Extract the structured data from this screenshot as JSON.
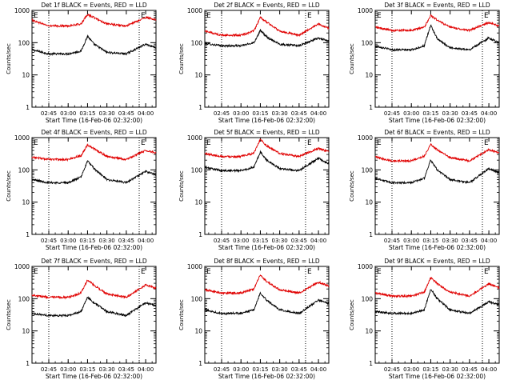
{
  "figure": {
    "start_time_label": "Start Time (16-Feb-06 02:32:00)",
    "ylabel": "Counts/sec",
    "x_ticks": [
      "02:45",
      "03:00",
      "03:15",
      "03:30",
      "03:45",
      "04:00"
    ],
    "y_ticks": [
      "1",
      "10",
      "100",
      "1000"
    ],
    "series_colors": {
      "events": "#000000",
      "lld": "#e00000"
    },
    "marker_labels": {
      "start": "E",
      "end": "E"
    }
  },
  "chart_data": [
    {
      "type": "line",
      "title": "Det 1f BLACK = Events, RED = LLD",
      "x": [
        "02:32",
        "02:45",
        "03:00",
        "03:10",
        "03:15",
        "03:20",
        "03:30",
        "03:45",
        "04:00",
        "04:08"
      ],
      "ylim": [
        1,
        1000
      ],
      "yscale": "log",
      "vlines": [
        "02:45",
        "03:55"
      ],
      "markers": [
        "02:32",
        "03:55"
      ],
      "series": [
        {
          "name": "Events",
          "color": "#000000",
          "values": [
            60,
            45,
            45,
            55,
            160,
            90,
            50,
            45,
            90,
            70
          ]
        },
        {
          "name": "LLD",
          "color": "#e00000",
          "values": [
            500,
            330,
            330,
            380,
            750,
            600,
            380,
            330,
            600,
            520
          ]
        }
      ]
    },
    {
      "type": "line",
      "title": "Det 2f BLACK = Events, RED = LLD",
      "x": [
        "02:32",
        "02:45",
        "03:00",
        "03:10",
        "03:15",
        "03:20",
        "03:30",
        "03:45",
        "04:00",
        "04:08"
      ],
      "ylim": [
        1,
        1000
      ],
      "yscale": "log",
      "vlines": [
        "02:45",
        "03:50"
      ],
      "markers": [
        "02:32",
        "03:50"
      ],
      "series": [
        {
          "name": "Events",
          "color": "#000000",
          "values": [
            95,
            80,
            80,
            100,
            240,
            150,
            90,
            80,
            140,
            110
          ]
        },
        {
          "name": "LLD",
          "color": "#e00000",
          "values": [
            230,
            170,
            170,
            230,
            600,
            430,
            230,
            170,
            380,
            280
          ]
        }
      ]
    },
    {
      "type": "line",
      "title": "Det 3f BLACK = Events, RED = LLD",
      "x": [
        "02:32",
        "02:45",
        "03:00",
        "03:10",
        "03:15",
        "03:20",
        "03:30",
        "03:45",
        "04:00",
        "04:08"
      ],
      "ylim": [
        1,
        1000
      ],
      "yscale": "log",
      "vlines": [
        "02:45",
        "03:55"
      ],
      "markers": [
        "02:32",
        "03:55"
      ],
      "series": [
        {
          "name": "Events",
          "color": "#000000",
          "values": [
            80,
            60,
            60,
            80,
            350,
            130,
            70,
            60,
            140,
            100
          ]
        },
        {
          "name": "LLD",
          "color": "#e00000",
          "values": [
            300,
            240,
            240,
            300,
            700,
            500,
            300,
            240,
            420,
            330
          ]
        }
      ]
    },
    {
      "type": "line",
      "title": "Det 4f BLACK = Events, RED = LLD",
      "x": [
        "02:32",
        "02:45",
        "03:00",
        "03:10",
        "03:15",
        "03:20",
        "03:30",
        "03:45",
        "04:00",
        "04:08"
      ],
      "ylim": [
        1,
        1000
      ],
      "yscale": "log",
      "vlines": [
        "02:45",
        "03:55"
      ],
      "markers": [
        "02:32",
        "03:55"
      ],
      "series": [
        {
          "name": "Events",
          "color": "#000000",
          "values": [
            50,
            40,
            40,
            60,
            190,
            110,
            50,
            40,
            90,
            70
          ]
        },
        {
          "name": "LLD",
          "color": "#e00000",
          "values": [
            250,
            210,
            210,
            280,
            600,
            450,
            260,
            210,
            400,
            340
          ]
        }
      ]
    },
    {
      "type": "line",
      "title": "Det 5f BLACK = Events, RED = LLD",
      "x": [
        "02:32",
        "02:45",
        "03:00",
        "03:10",
        "03:15",
        "03:20",
        "03:30",
        "03:45",
        "04:00",
        "04:08"
      ],
      "ylim": [
        1,
        1000
      ],
      "yscale": "log",
      "vlines": [
        "02:45",
        "03:50"
      ],
      "markers": [
        "02:32",
        "03:50"
      ],
      "series": [
        {
          "name": "Events",
          "color": "#000000",
          "values": [
            120,
            95,
            95,
            120,
            360,
            200,
            110,
            95,
            230,
            150
          ]
        },
        {
          "name": "LLD",
          "color": "#e00000",
          "values": [
            320,
            260,
            260,
            330,
            900,
            550,
            320,
            260,
            470,
            360
          ]
        }
      ]
    },
    {
      "type": "line",
      "title": "Det 6f BLACK = Events, RED = LLD",
      "x": [
        "02:32",
        "02:45",
        "03:00",
        "03:10",
        "03:15",
        "03:20",
        "03:30",
        "03:45",
        "04:00",
        "04:08"
      ],
      "ylim": [
        1,
        1000
      ],
      "yscale": "log",
      "vlines": [
        "02:45",
        "03:55"
      ],
      "markers": [
        "02:32",
        "03:55"
      ],
      "series": [
        {
          "name": "Events",
          "color": "#000000",
          "values": [
            55,
            40,
            40,
            55,
            200,
            100,
            50,
            40,
            110,
            80
          ]
        },
        {
          "name": "LLD",
          "color": "#e00000",
          "values": [
            250,
            190,
            190,
            270,
            620,
            420,
            240,
            190,
            420,
            330
          ]
        }
      ]
    },
    {
      "type": "line",
      "title": "Det 7f BLACK = Events, RED = LLD",
      "x": [
        "02:32",
        "02:45",
        "03:00",
        "03:10",
        "03:15",
        "03:20",
        "03:30",
        "03:45",
        "04:00",
        "04:08"
      ],
      "ylim": [
        1,
        1000
      ],
      "yscale": "log",
      "vlines": [
        "02:45",
        "03:55"
      ],
      "markers": [
        "02:32",
        "03:55"
      ],
      "series": [
        {
          "name": "Events",
          "color": "#000000",
          "values": [
            35,
            30,
            30,
            40,
            110,
            75,
            40,
            30,
            75,
            60
          ]
        },
        {
          "name": "LLD",
          "color": "#e00000",
          "values": [
            130,
            110,
            110,
            150,
            380,
            260,
            140,
            110,
            270,
            210
          ]
        }
      ]
    },
    {
      "type": "line",
      "title": "Det 8f BLACK = Events, RED = LLD",
      "x": [
        "02:32",
        "02:45",
        "03:00",
        "03:10",
        "03:15",
        "03:20",
        "03:30",
        "03:45",
        "04:00",
        "04:08"
      ],
      "ylim": [
        1,
        1000
      ],
      "yscale": "log",
      "vlines": [
        "02:45",
        "03:50"
      ],
      "markers": [
        "02:32",
        "03:50"
      ],
      "series": [
        {
          "name": "Events",
          "color": "#000000",
          "values": [
            45,
            35,
            35,
            45,
            150,
            90,
            45,
            35,
            90,
            70
          ]
        },
        {
          "name": "LLD",
          "color": "#e00000",
          "values": [
            190,
            150,
            150,
            200,
            550,
            330,
            190,
            150,
            320,
            250
          ]
        }
      ]
    },
    {
      "type": "line",
      "title": "Det 9f BLACK = Events, RED = LLD",
      "x": [
        "02:32",
        "02:45",
        "03:00",
        "03:10",
        "03:15",
        "03:20",
        "03:30",
        "03:45",
        "04:00",
        "04:08"
      ],
      "ylim": [
        1,
        1000
      ],
      "yscale": "log",
      "vlines": [
        "02:45",
        "03:55"
      ],
      "markers": [
        "02:32",
        "03:55"
      ],
      "series": [
        {
          "name": "Events",
          "color": "#000000",
          "values": [
            40,
            35,
            35,
            45,
            200,
            100,
            45,
            35,
            80,
            65
          ]
        },
        {
          "name": "LLD",
          "color": "#e00000",
          "values": [
            150,
            120,
            120,
            160,
            450,
            290,
            160,
            120,
            290,
            220
          ]
        }
      ]
    }
  ]
}
